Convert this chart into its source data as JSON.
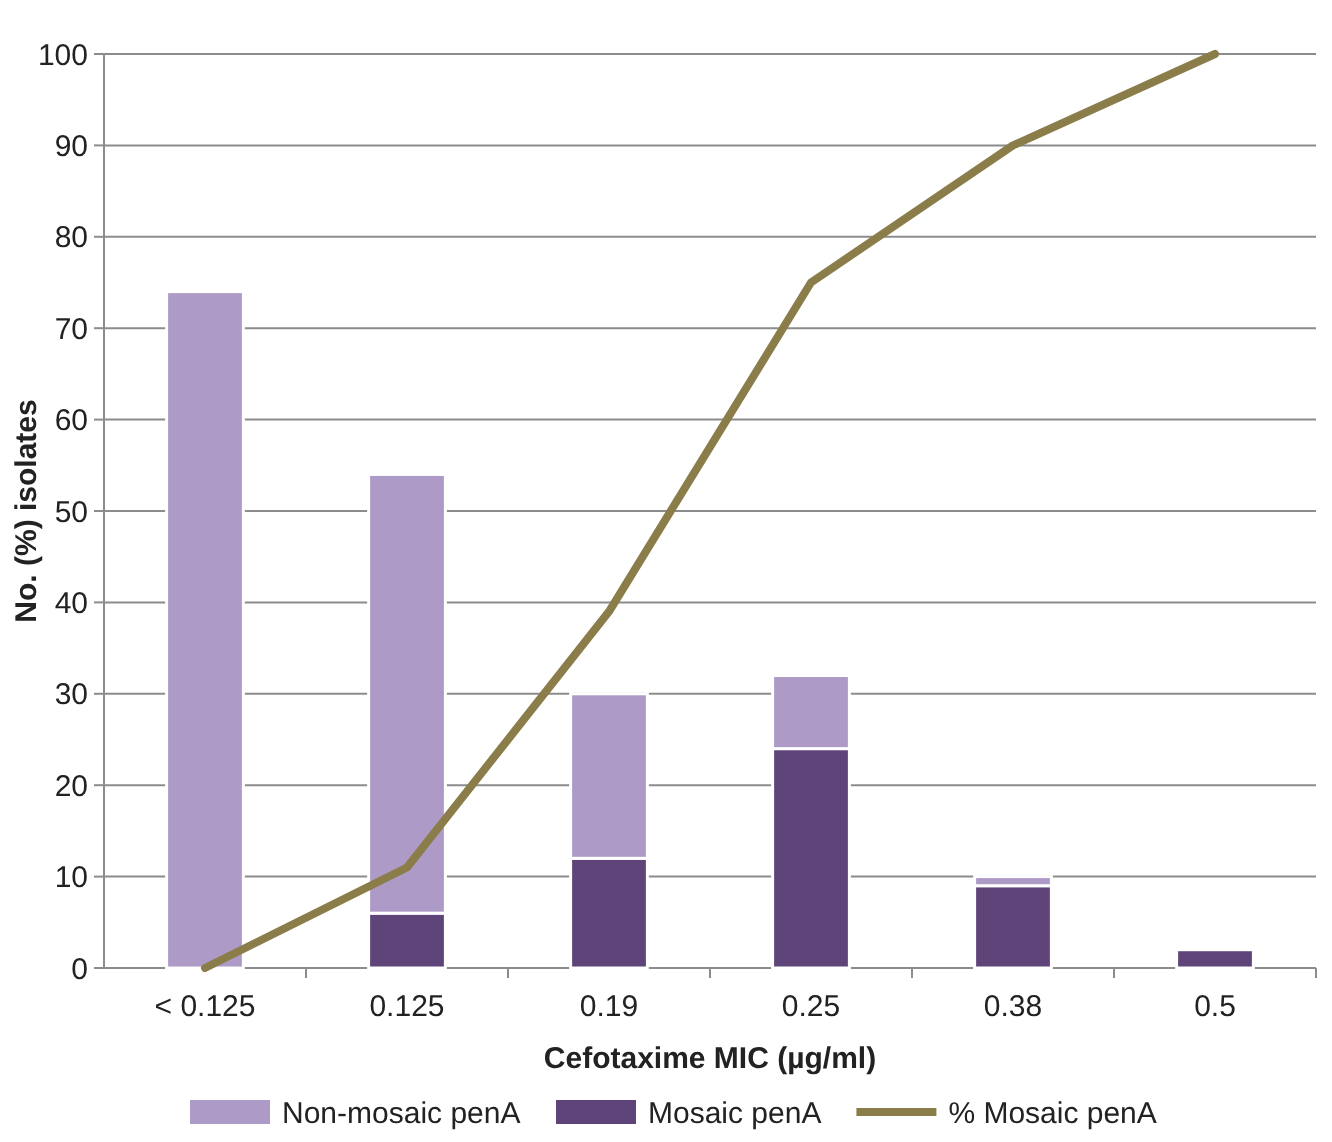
{
  "chart_data": {
    "type": "bar",
    "stacked": true,
    "xlabel": "Cefotaxime MIC (µg/ml)",
    "ylabel": "No. (%) isolates",
    "categories": [
      "< 0.125",
      "0.125",
      "0.19",
      "0.25",
      "0.38",
      "0.5"
    ],
    "series": [
      {
        "name": "Mosaic penA",
        "color": "#5e4479",
        "values": [
          0,
          6,
          12,
          24,
          9,
          2
        ]
      },
      {
        "name": "Non-mosaic penA",
        "color": "#ad9ac6",
        "values": [
          74,
          48,
          18,
          8,
          1,
          0
        ]
      },
      {
        "name": "% Mosaic penA",
        "type": "line",
        "color": "#8b7d4a",
        "values": [
          0,
          11,
          39,
          75,
          90,
          100
        ]
      }
    ],
    "ylim": [
      0,
      100
    ],
    "yticks": [
      0,
      10,
      20,
      30,
      40,
      50,
      60,
      70,
      80,
      90,
      100
    ],
    "grid": "y",
    "legend": "bottom"
  }
}
